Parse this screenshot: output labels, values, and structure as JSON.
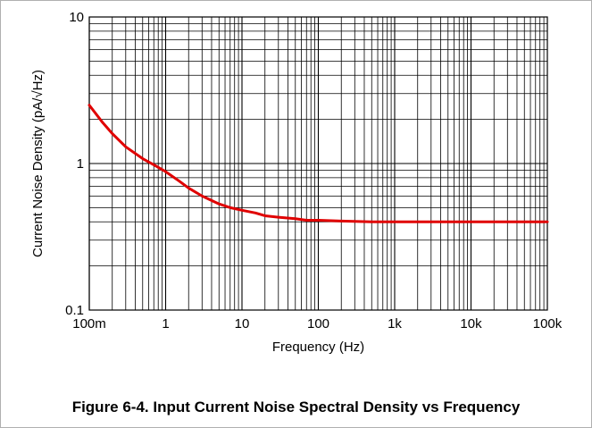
{
  "caption": "Figure 6-4. Input Current Noise Spectral Density vs Frequency",
  "colors": {
    "curve": "#e00000",
    "grid": "#000000",
    "background": "#ffffff"
  },
  "chart_data": {
    "type": "line",
    "title": "",
    "xlabel": "Frequency (Hz)",
    "ylabel": "Current Noise Density (pA/√Hz)",
    "xscale": "log",
    "yscale": "log",
    "xlim": [
      0.1,
      100000
    ],
    "ylim": [
      0.1,
      10
    ],
    "grid": true,
    "x_ticks": [
      {
        "value": 0.1,
        "label": "100m"
      },
      {
        "value": 1,
        "label": "1"
      },
      {
        "value": 10,
        "label": "10"
      },
      {
        "value": 100,
        "label": "100"
      },
      {
        "value": 1000,
        "label": "1k"
      },
      {
        "value": 10000,
        "label": "10k"
      },
      {
        "value": 100000,
        "label": "100k"
      }
    ],
    "y_ticks": [
      {
        "value": 0.1,
        "label": "0.1"
      },
      {
        "value": 1,
        "label": "1"
      },
      {
        "value": 10,
        "label": "10"
      }
    ],
    "series": [
      {
        "color": "#e00000",
        "x": [
          0.1,
          0.15,
          0.2,
          0.3,
          0.5,
          0.7,
          1,
          1.5,
          2,
          3,
          5,
          7,
          10,
          15,
          20,
          30,
          50,
          70,
          100,
          200,
          500,
          1000,
          10000,
          100000
        ],
        "y": [
          2.5,
          1.9,
          1.6,
          1.3,
          1.08,
          0.98,
          0.88,
          0.76,
          0.68,
          0.6,
          0.53,
          0.5,
          0.48,
          0.46,
          0.44,
          0.43,
          0.42,
          0.41,
          0.41,
          0.405,
          0.4,
          0.4,
          0.4,
          0.4
        ]
      }
    ]
  }
}
